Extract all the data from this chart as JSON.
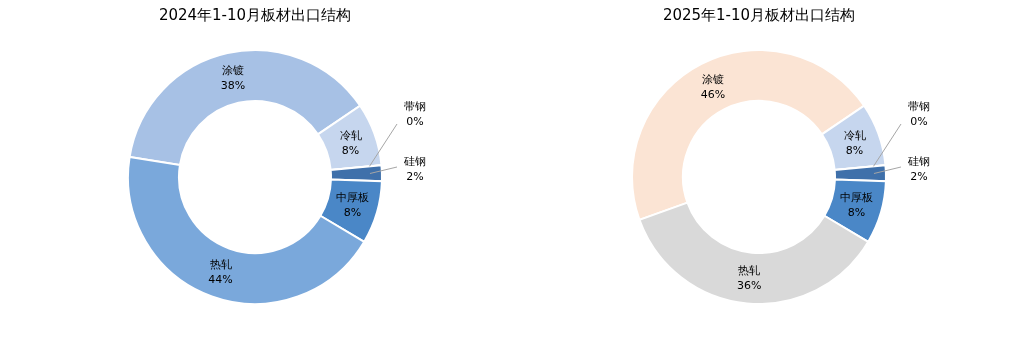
{
  "chart_data": [
    {
      "type": "donut",
      "title": "2024年1-10月板材出口结构",
      "categories": [
        "涂镀",
        "冷轧",
        "带钢",
        "硅钢",
        "中厚板",
        "热轧"
      ],
      "values": [
        38,
        8,
        0,
        2,
        8,
        44
      ],
      "value_labels": [
        "38%",
        "8%",
        "0%",
        "2%",
        "8%",
        "44%"
      ],
      "colors": [
        "#a7c1e5",
        "#c6d6ee",
        "#2c5c95",
        "#3f70aa",
        "#4a87c7",
        "#7aa8db"
      ]
    },
    {
      "type": "donut",
      "title": "2025年1-10月板材出口结构",
      "categories": [
        "涂镀",
        "冷轧",
        "带钢",
        "硅钢",
        "中厚板",
        "热轧"
      ],
      "values": [
        46,
        8,
        0,
        2,
        8,
        36
      ],
      "value_labels": [
        "46%",
        "8%",
        "0%",
        "2%",
        "8%",
        "36%"
      ],
      "colors": [
        "#fbe4d4",
        "#c6d6ee",
        "#2c5c95",
        "#3f70aa",
        "#4a87c7",
        "#d9d9d9"
      ]
    }
  ]
}
